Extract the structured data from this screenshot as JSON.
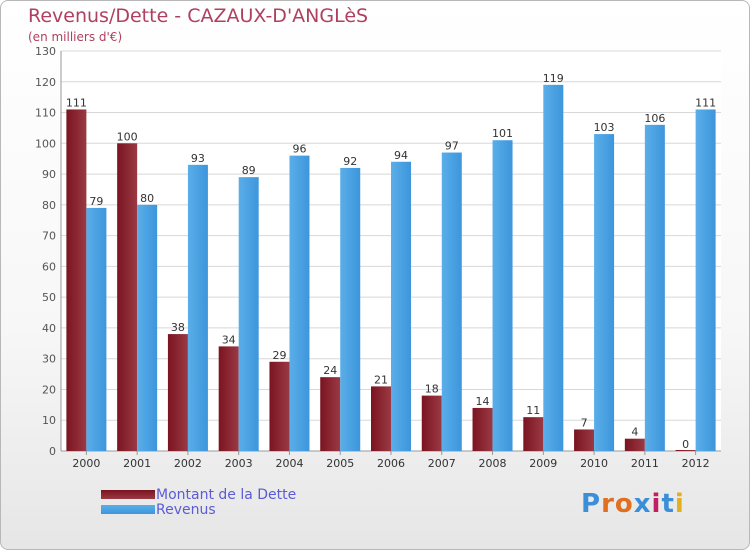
{
  "title": "Revenus/Dette - CAZAUX-D'ANGLèS",
  "subtitle": "(en milliers d'€)",
  "logo": {
    "text": "Proxiti",
    "colors": [
      "#3a8fd8",
      "#e07020",
      "#e07020",
      "#3a8fd8",
      "#c02060",
      "#3a8fd8",
      "#e0b020"
    ]
  },
  "colors": {
    "dette": "#7a1420",
    "dette_light": "#9a3a44",
    "revenus": "#3d96dc",
    "revenus_light": "#5aaee8",
    "title": "#b04060",
    "legend_text": "#5b5bd6"
  },
  "chart_data": {
    "type": "bar",
    "categories": [
      "2000",
      "2001",
      "2002",
      "2003",
      "2004",
      "2005",
      "2006",
      "2007",
      "2008",
      "2009",
      "2010",
      "2011",
      "2012"
    ],
    "series": [
      {
        "name": "Montant de la Dette",
        "values": [
          111,
          100,
          38,
          34,
          29,
          24,
          21,
          18,
          14,
          11,
          7,
          4,
          0
        ]
      },
      {
        "name": "Revenus",
        "values": [
          79,
          80,
          93,
          89,
          96,
          92,
          94,
          97,
          101,
          119,
          103,
          106,
          111
        ]
      }
    ],
    "ylim": [
      0,
      130
    ],
    "yticks": [
      0,
      10,
      20,
      30,
      40,
      50,
      60,
      70,
      80,
      90,
      100,
      110,
      120,
      130
    ],
    "grid": true,
    "legend_position": "bottom-left"
  }
}
